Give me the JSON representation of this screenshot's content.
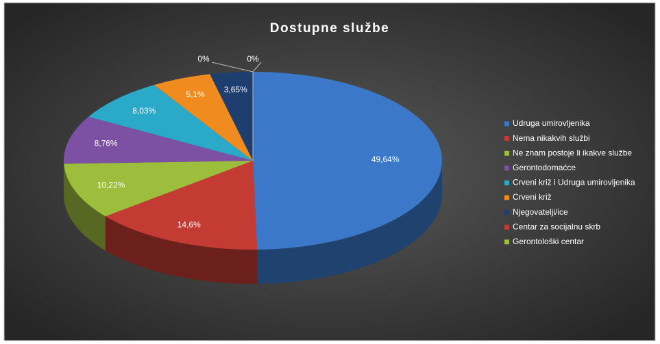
{
  "chart_data": {
    "type": "pie3d",
    "title": "Dostupne službe",
    "categories": [
      "Udruga umirovljenika",
      "Nema nikakvih službi",
      "Ne znam postoje li ikakve službe",
      "Gerontodomaćce",
      "Crveni križ i Udruga umirovljenika",
      "Crveni križ",
      "Njegovatelji/ice",
      "Centar za socijalnu skrb",
      "Gerontološki centar"
    ],
    "values": [
      49.64,
      14.6,
      10.22,
      8.76,
      8.03,
      5.1,
      3.65,
      0,
      0
    ],
    "value_labels": [
      "49,64%",
      "14,6%",
      "10,22%",
      "8,76%",
      "8,03%",
      "5,1%",
      "3,65%",
      "0%",
      "0%"
    ],
    "colors": [
      "#3b78c9",
      "#c33b32",
      "#9dbd3c",
      "#7c50a2",
      "#2ba9c9",
      "#f08b1f",
      "#1f3e70",
      "#c33b32",
      "#9dbd3c"
    ],
    "legend": "right"
  }
}
